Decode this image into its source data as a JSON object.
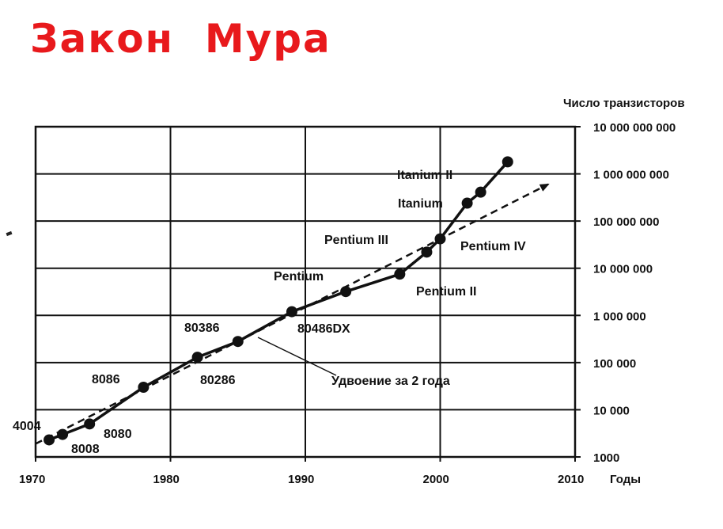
{
  "page": {
    "title": "Закон  Мура"
  },
  "chart_data": {
    "type": "line",
    "title": "Закон  Мура",
    "xlabel": "Годы",
    "ylabel": "Число транзисторов",
    "xlim": [
      1970,
      2010
    ],
    "ylim": [
      1000,
      10000000000
    ],
    "yscale": "log",
    "x_ticks": [
      1970,
      1980,
      1990,
      2000,
      2010
    ],
    "x_tick_labels": [
      "1970",
      "1980",
      "1990",
      "2000",
      "2010"
    ],
    "y_ticks": [
      1000,
      10000,
      100000,
      1000000,
      10000000,
      100000000,
      1000000000,
      10000000000
    ],
    "y_tick_labels": [
      "1000",
      "10 000",
      "100 000",
      "1 000 000",
      "10 000 000",
      "100 000 000",
      "1 000 000 000",
      "10 000 000 000"
    ],
    "grid": "horizontal",
    "series": [
      {
        "points": [
          {
            "x": 1971,
            "y": 2300
          },
          {
            "x": 1972,
            "y": 3000
          },
          {
            "x": 1974,
            "y": 5000
          },
          {
            "x": 1978,
            "y": 30000
          },
          {
            "x": 1982,
            "y": 130000
          },
          {
            "x": 1985,
            "y": 280000
          },
          {
            "x": 1989,
            "y": 1200000
          },
          {
            "x": 1993,
            "y": 3200000
          },
          {
            "x": 1997,
            "y": 7500000
          },
          {
            "x": 1999,
            "y": 22000000
          },
          {
            "x": 2000,
            "y": 42000000
          },
          {
            "x": 2002,
            "y": 240000000
          },
          {
            "x": 2003,
            "y": 410000000
          },
          {
            "x": 2005,
            "y": 1800000000
          }
        ]
      },
      {
        "name": "Удвоение за 2 года",
        "style": "dashed-arrow",
        "points": [
          {
            "x": 1970,
            "y": 1900
          },
          {
            "x": 2008,
            "y": 600000000
          }
        ]
      }
    ],
    "annotations": [
      {
        "text": "4004",
        "x": 1971
      },
      {
        "text": "8008",
        "x": 1972
      },
      {
        "text": "8080",
        "x": 1974
      },
      {
        "text": "8086",
        "x": 1978
      },
      {
        "text": "80286",
        "x": 1982
      },
      {
        "text": "80386",
        "x": 1985
      },
      {
        "text": "80486DX",
        "x": 1989
      },
      {
        "text": "Pentium",
        "x": 1993
      },
      {
        "text": "Pentium II",
        "x": 1997
      },
      {
        "text": "Pentium III",
        "x": 1999
      },
      {
        "text": "Pentium IV",
        "x": 2000
      },
      {
        "text": "Itanium",
        "x": 2002
      },
      {
        "text": "Itanium II",
        "x": 2003
      },
      {
        "text": "Удвоение за 2 года",
        "x": 1986
      }
    ],
    "colors": {
      "title": "#e8191c",
      "ink": "#111111"
    }
  }
}
